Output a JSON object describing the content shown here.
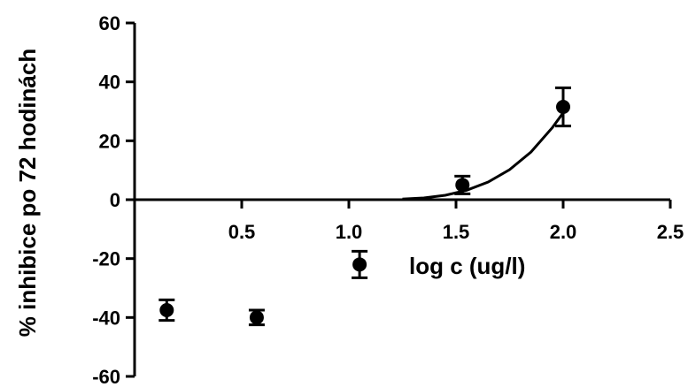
{
  "chart_data": {
    "type": "scatter",
    "xlabel": "log c (ug/l)",
    "ylabel": "% inhibice po 72 hodinách",
    "xlim": [
      0,
      2.5
    ],
    "ylim": [
      -60,
      60
    ],
    "x_ticks": [
      0.5,
      1.0,
      1.5,
      2.0,
      2.5
    ],
    "x_tick_labels": [
      "0.5",
      "1.0",
      "1.5",
      "2.0",
      "2.5"
    ],
    "y_ticks": [
      -60,
      -40,
      -20,
      0,
      20,
      40,
      60
    ],
    "y_tick_labels": [
      "-60",
      "-40",
      "-20",
      "0",
      "20",
      "40",
      "60"
    ],
    "grid": false,
    "legend": "none",
    "series": [
      {
        "x": [
          0.15,
          0.57,
          1.05,
          1.53,
          2.0
        ],
        "y": [
          -37.5,
          -40,
          -22,
          5,
          31.5
        ],
        "error": [
          3.5,
          2.5,
          4.5,
          3,
          6.5
        ]
      }
    ],
    "fit_curve": {
      "x": [
        1.25,
        1.35,
        1.45,
        1.55,
        1.65,
        1.75,
        1.85,
        1.95,
        2.0
      ],
      "y": [
        0.2,
        0.6,
        1.5,
        3.2,
        6.0,
        10.2,
        16.2,
        24.5,
        29.5
      ]
    },
    "colors": {
      "marker": "#000000",
      "line": "#000000",
      "axis": "#000000"
    }
  }
}
